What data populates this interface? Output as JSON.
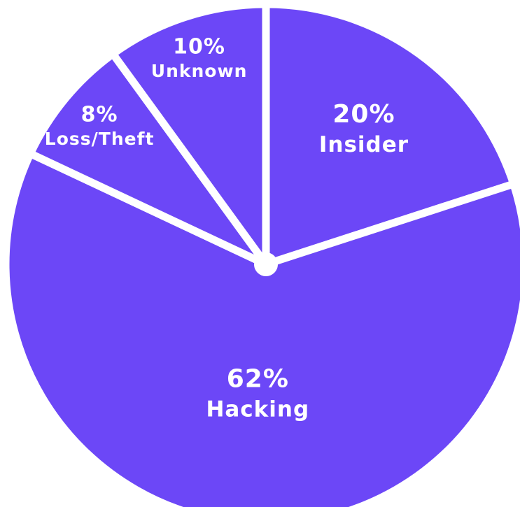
{
  "chart_data": {
    "type": "pie",
    "categories": [
      "Insider",
      "Hacking",
      "Loss/Theft",
      "Unknown"
    ],
    "values": [
      20,
      62,
      8,
      10
    ],
    "value_labels": [
      "20%",
      "62%",
      "8%",
      "10%"
    ],
    "color": "#6c47f7"
  }
}
